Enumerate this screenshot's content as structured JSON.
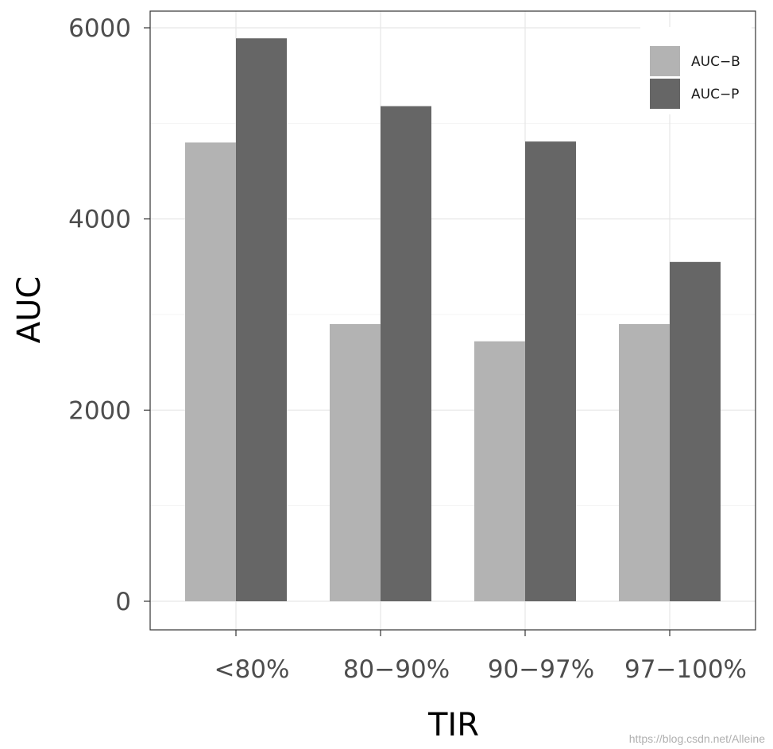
{
  "chart_data": {
    "type": "bar",
    "xlabel": "TIR",
    "ylabel": "AUC",
    "categories": [
      "<80%",
      "80−90%",
      "90−97%",
      "97−100%"
    ],
    "series": [
      {
        "name": "AUC−B",
        "color": "#b3b3b3",
        "values": [
          4800,
          2900,
          2720,
          2900
        ]
      },
      {
        "name": "AUC−P",
        "color": "#666666",
        "values": [
          5890,
          5180,
          4810,
          3550
        ]
      }
    ],
    "ylim": [
      0,
      6000
    ],
    "yticks": [
      0,
      2000,
      4000,
      6000
    ],
    "yticks_labels": [
      "0",
      "2000",
      "4000",
      "6000"
    ],
    "grid": true,
    "legend_position": "top-right"
  },
  "watermark": "https://blog.csdn.net/Alleine"
}
